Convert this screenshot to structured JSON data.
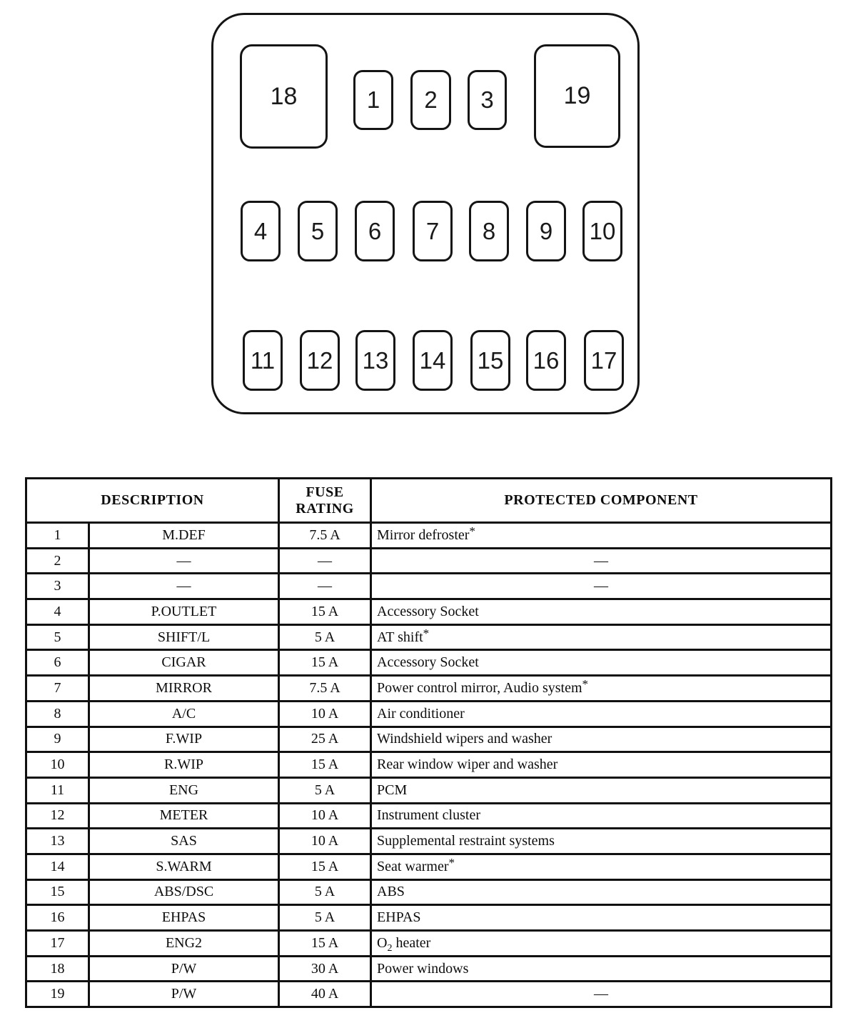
{
  "diagram": {
    "fuse_labels": [
      "18",
      "1",
      "2",
      "3",
      "19",
      "4",
      "5",
      "6",
      "7",
      "8",
      "9",
      "10",
      "11",
      "12",
      "13",
      "14",
      "15",
      "16",
      "17"
    ]
  },
  "table": {
    "header": {
      "description": "DESCRIPTION",
      "fuse_rating": "FUSE\nRATING",
      "protected_component": "PROTECTED COMPONENT"
    },
    "rows": [
      {
        "num": "1",
        "description": "M.DEF",
        "rating": "7.5 A",
        "component": [
          {
            "t": "Mirror defroster"
          },
          {
            "t": "*",
            "sup": true
          }
        ]
      },
      {
        "num": "2",
        "description": "—",
        "rating": "—",
        "component": [
          {
            "t": "—"
          }
        ],
        "component_center": true
      },
      {
        "num": "3",
        "description": "—",
        "rating": "—",
        "component": [
          {
            "t": "—"
          }
        ],
        "component_center": true
      },
      {
        "num": "4",
        "description": "P.OUTLET",
        "rating": "15 A",
        "component": [
          {
            "t": "Accessory Socket"
          }
        ]
      },
      {
        "num": "5",
        "description": "SHIFT/L",
        "rating": "5 A",
        "component": [
          {
            "t": "AT shift"
          },
          {
            "t": "*",
            "sup": true
          }
        ]
      },
      {
        "num": "6",
        "description": "CIGAR",
        "rating": "15 A",
        "component": [
          {
            "t": "Accessory Socket"
          }
        ]
      },
      {
        "num": "7",
        "description": "MIRROR",
        "rating": "7.5 A",
        "component": [
          {
            "t": "Power control mirror, Audio system"
          },
          {
            "t": "*",
            "sup": true
          }
        ]
      },
      {
        "num": "8",
        "description": "A/C",
        "rating": "10 A",
        "component": [
          {
            "t": "Air conditioner"
          }
        ]
      },
      {
        "num": "9",
        "description": "F.WIP",
        "rating": "25 A",
        "component": [
          {
            "t": "Windshield wipers and washer"
          }
        ]
      },
      {
        "num": "10",
        "description": "R.WIP",
        "rating": "15 A",
        "component": [
          {
            "t": "Rear window wiper and washer"
          }
        ]
      },
      {
        "num": "11",
        "description": "ENG",
        "rating": "5 A",
        "component": [
          {
            "t": "PCM"
          }
        ]
      },
      {
        "num": "12",
        "description": "METER",
        "rating": "10 A",
        "component": [
          {
            "t": "Instrument cluster"
          }
        ]
      },
      {
        "num": "13",
        "description": "SAS",
        "rating": "10 A",
        "component": [
          {
            "t": "Supplemental restraint systems"
          }
        ]
      },
      {
        "num": "14",
        "description": "S.WARM",
        "rating": "15 A",
        "component": [
          {
            "t": "Seat warmer"
          },
          {
            "t": "*",
            "sup": true
          }
        ]
      },
      {
        "num": "15",
        "description": "ABS/DSC",
        "rating": "5 A",
        "component": [
          {
            "t": "ABS"
          }
        ]
      },
      {
        "num": "16",
        "description": "EHPAS",
        "rating": "5 A",
        "component": [
          {
            "t": "EHPAS"
          }
        ]
      },
      {
        "num": "17",
        "description": "ENG2",
        "rating": "15 A",
        "component": [
          {
            "t": "O"
          },
          {
            "t": "2",
            "sub": true
          },
          {
            "t": " heater"
          }
        ]
      },
      {
        "num": "18",
        "description": "P/W",
        "rating": "30 A",
        "component": [
          {
            "t": "Power windows"
          }
        ]
      },
      {
        "num": "19",
        "description": "P/W",
        "rating": "40 A",
        "component": [
          {
            "t": "—"
          }
        ],
        "component_center": true
      }
    ]
  }
}
